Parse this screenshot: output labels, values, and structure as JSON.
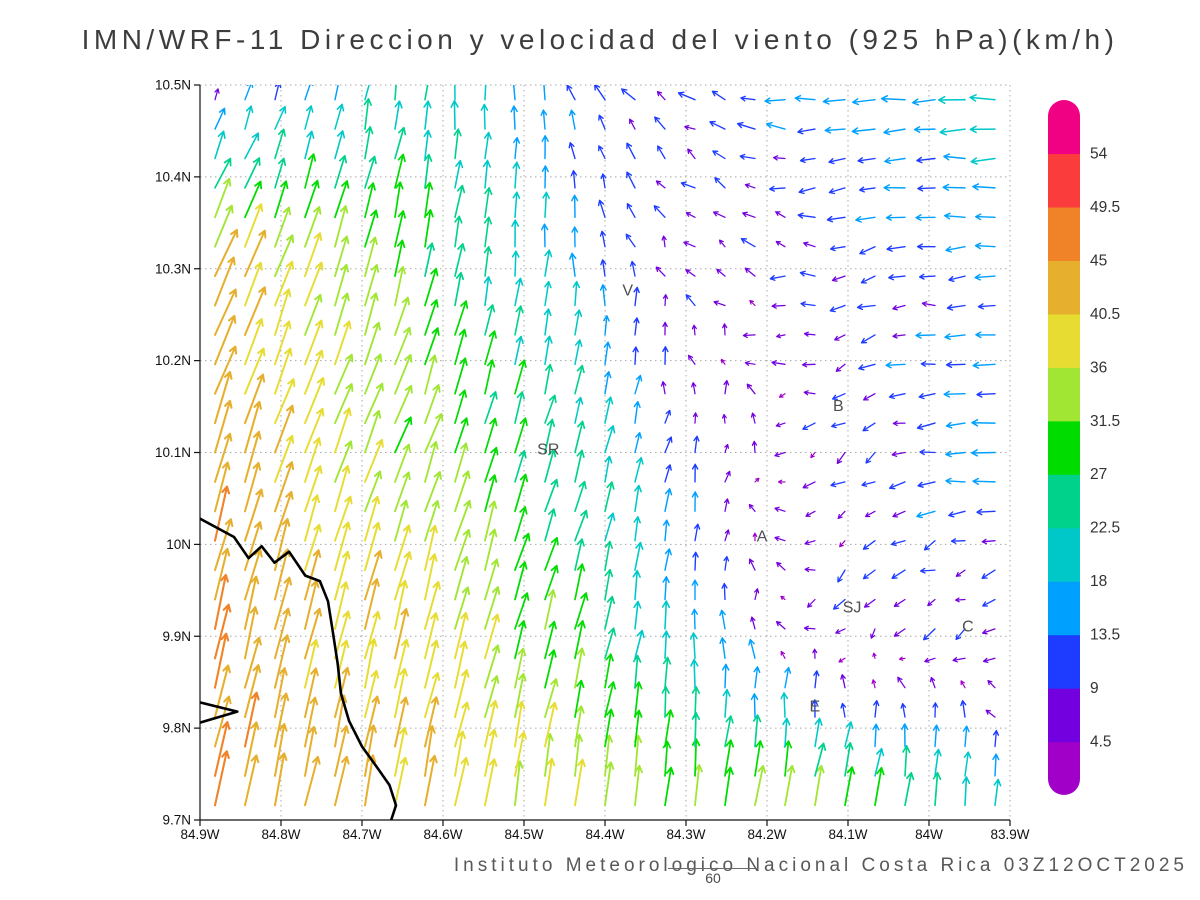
{
  "title": "IMN/WRF-11 Direccion y velocidad del viento (925 hPa)(km/h)",
  "footer": {
    "credit": "Instituto Meteorologico Nacional Costa Rica 03Z12OCT2025",
    "forecast_hour_label": "60"
  },
  "chart_data": {
    "type": "vector-field-map",
    "title": "IMN/WRF-11 Direccion y velocidad del viento (925 hPa)(km/h)",
    "units": "km/h",
    "level": "925 hPa",
    "x_axis": {
      "labels": [
        "84.9W",
        "84.8W",
        "84.7W",
        "84.6W",
        "84.5W",
        "84.4W",
        "84.3W",
        "84.2W",
        "84.1W",
        "84W",
        "83.9W"
      ],
      "lon_west": 84.9,
      "lon_east": 83.9,
      "step_deg": 0.1
    },
    "y_axis": {
      "labels": [
        "10.5N",
        "10.4N",
        "10.3N",
        "10.2N",
        "10.1N",
        "10N",
        "9.9N",
        "9.8N",
        "9.7N"
      ],
      "lat_south": 9.7,
      "lat_north": 10.5,
      "step_deg": 0.1
    },
    "colorbar": {
      "labels_top_to_bottom": [
        "54",
        "49.5",
        "45",
        "40.5",
        "36",
        "31.5",
        "27",
        "22.5",
        "18",
        "13.5",
        "9",
        "4.5"
      ],
      "colors_low_to_high": [
        "#a000c8",
        "#7300de",
        "#1e3cff",
        "#00a0ff",
        "#00c8c8",
        "#00d28c",
        "#00dc00",
        "#a0e632",
        "#e6dc32",
        "#e6af2d",
        "#f08228",
        "#fa3c3c",
        "#f00082"
      ]
    },
    "speed_breaks": [
      4.5,
      9,
      13.5,
      18,
      22.5,
      27,
      31.5,
      36,
      40.5,
      45,
      49.5,
      54
    ],
    "wind_control_grid": {
      "lons_w": [
        84.9,
        84.65,
        84.45,
        84.3,
        84.1,
        83.9
      ],
      "lats_n": [
        9.7,
        9.9,
        10.1,
        10.3,
        10.5
      ],
      "u": [
        [
          10,
          8,
          5,
          4,
          8,
          2
        ],
        [
          10,
          10,
          8,
          0,
          -4,
          -6
        ],
        [
          14,
          12,
          7,
          2,
          -7,
          -17
        ],
        [
          17,
          7,
          0,
          -4,
          -9,
          -13
        ],
        [
          4,
          3,
          -4,
          -9,
          -16,
          -20
        ]
      ],
      "v": [
        [
          43,
          40,
          36,
          32,
          34,
          22
        ],
        [
          44,
          38,
          28,
          18,
          -6,
          -4
        ],
        [
          42,
          30,
          24,
          10,
          -5,
          1
        ],
        [
          38,
          30,
          17,
          6,
          -2,
          -1
        ],
        [
          6,
          22,
          12,
          4,
          -1,
          0
        ]
      ]
    },
    "arrow_grid": {
      "cols": 27,
      "rows": 25
    },
    "cities": [
      {
        "label": "V",
        "lon_w": 84.372,
        "lat_n": 10.271
      },
      {
        "label": "SR",
        "lon_w": 84.47,
        "lat_n": 10.098
      },
      {
        "label": "B",
        "lon_w": 84.112,
        "lat_n": 10.145
      },
      {
        "label": "A",
        "lon_w": 84.206,
        "lat_n": 10.003
      },
      {
        "label": "SJ",
        "lon_w": 84.095,
        "lat_n": 9.926
      },
      {
        "label": "C",
        "lon_w": 83.952,
        "lat_n": 9.905
      },
      {
        "label": "E",
        "lon_w": 84.141,
        "lat_n": 9.818
      }
    ],
    "coastline": [
      [
        [
          84.9,
          10.028
        ],
        [
          84.858,
          10.008
        ],
        [
          84.84,
          9.985
        ],
        [
          84.824,
          9.998
        ],
        [
          84.808,
          9.98
        ],
        [
          84.79,
          9.992
        ],
        [
          84.77,
          9.966
        ],
        [
          84.752,
          9.96
        ],
        [
          84.742,
          9.938
        ],
        [
          84.736,
          9.905
        ],
        [
          84.73,
          9.87
        ],
        [
          84.726,
          9.838
        ],
        [
          84.716,
          9.808
        ],
        [
          84.7,
          9.78
        ],
        [
          84.682,
          9.758
        ],
        [
          84.666,
          9.738
        ],
        [
          84.658,
          9.716
        ],
        [
          84.664,
          9.7
        ]
      ],
      [
        [
          84.9,
          9.828
        ],
        [
          84.854,
          9.818
        ],
        [
          84.9,
          9.806
        ]
      ]
    ]
  }
}
